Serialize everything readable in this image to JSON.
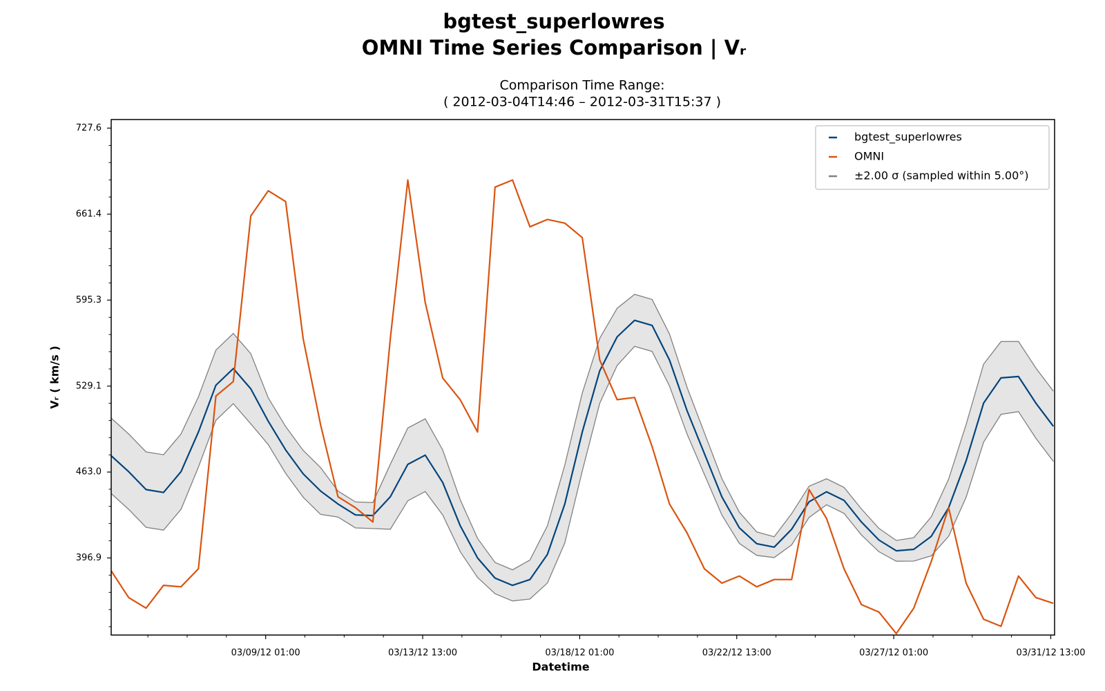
{
  "chart_data": {
    "type": "line",
    "title": "bgtest_superlowres",
    "subtitle": "OMNI Time Series Comparison | Vᵣ",
    "range_title": "Comparison Time Range:",
    "range_text": "( 2012-03-04T14:46 – 2012-03-31T15:37 )",
    "x_label": "Datetime",
    "y_label": "Vᵣ ( km/s )",
    "x": [
      "2012-03-04T14:46",
      "2012-03-05T02:46",
      "2012-03-05T14:46",
      "2012-03-06T02:46",
      "2012-03-06T14:46",
      "2012-03-07T02:46",
      "2012-03-07T14:46",
      "2012-03-08T02:46",
      "2012-03-08T14:46",
      "2012-03-09T02:46",
      "2012-03-09T14:46",
      "2012-03-10T02:46",
      "2012-03-10T14:46",
      "2012-03-11T02:46",
      "2012-03-11T14:46",
      "2012-03-12T02:46",
      "2012-03-12T14:46",
      "2012-03-13T02:46",
      "2012-03-13T14:46",
      "2012-03-14T02:46",
      "2012-03-14T14:46",
      "2012-03-15T02:46",
      "2012-03-15T14:46",
      "2012-03-16T02:46",
      "2012-03-16T14:46",
      "2012-03-17T02:46",
      "2012-03-17T14:46",
      "2012-03-18T02:46",
      "2012-03-18T14:46",
      "2012-03-19T02:46",
      "2012-03-19T14:46",
      "2012-03-20T02:46",
      "2012-03-20T14:46",
      "2012-03-21T02:46",
      "2012-03-21T14:46",
      "2012-03-22T02:46",
      "2012-03-22T14:46",
      "2012-03-23T02:46",
      "2012-03-23T14:46",
      "2012-03-24T02:46",
      "2012-03-24T14:46",
      "2012-03-25T02:46",
      "2012-03-25T14:46",
      "2012-03-26T02:46",
      "2012-03-26T14:46",
      "2012-03-27T02:46",
      "2012-03-27T14:46",
      "2012-03-28T02:46",
      "2012-03-28T14:46",
      "2012-03-29T02:46",
      "2012-03-29T14:46",
      "2012-03-30T02:46",
      "2012-03-30T14:46",
      "2012-03-31T02:46",
      "2012-03-31T14:46"
    ],
    "series": [
      {
        "name": "bgtest_superlowres",
        "color": "#00447c",
        "values": [
          475.5,
          463.3,
          449.5,
          447.3,
          463.3,
          493.8,
          529.8,
          542.6,
          527.1,
          502.1,
          480,
          461.7,
          448.4,
          438.4,
          430,
          429.5,
          444,
          468.9,
          476,
          455,
          421.8,
          396.9,
          381.4,
          375.8,
          380.3,
          399.6,
          438.4,
          493.8,
          540.9,
          567,
          579.7,
          575.8,
          549.2,
          510.4,
          477.2,
          444,
          420.1,
          407.9,
          405.2,
          419,
          440.1,
          447.8,
          441.2,
          424.6,
          410.7,
          402.4,
          403.5,
          413.5,
          435.6,
          471.6,
          516,
          535.4,
          536.5,
          516,
          498.2
        ]
      },
      {
        "name": "OMNI",
        "color": "#d9540f",
        "values": [
          387,
          366.4,
          358.3,
          375.8,
          374.7,
          388.6,
          521.5,
          532.6,
          660,
          679.4,
          671.1,
          565.8,
          499.4,
          444,
          435.6,
          424.6,
          565.8,
          687.7,
          593.5,
          535.4,
          518.7,
          493.8,
          682.2,
          687.7,
          651.7,
          657.3,
          654.5,
          643.4,
          549.2,
          518.7,
          520.4,
          482.7,
          438.4,
          416.3,
          388.6,
          377.5,
          383,
          374.7,
          380.3,
          380.3,
          449.5,
          427.3,
          388.6,
          361,
          355.3,
          338.7,
          358.3,
          394.1,
          435.6,
          377.5,
          349.8,
          344.3,
          383,
          366.4,
          362
        ]
      }
    ],
    "band": {
      "name": "±2.00 σ (sampled within 5.00°)",
      "color": "#808080",
      "fill": "#e5e5e5",
      "upper": [
        504.5,
        492.3,
        478.5,
        476.3,
        492.3,
        520.8,
        556.8,
        569.6,
        554.1,
        520.1,
        498,
        479.7,
        466.4,
        448.4,
        440,
        439.5,
        469,
        496.9,
        504,
        480,
        441.8,
        411.9,
        393.4,
        387.8,
        395.3,
        421.6,
        468.4,
        523.8,
        565.9,
        589,
        599.7,
        595.8,
        569.2,
        528.4,
        493.2,
        458,
        432.1,
        416.9,
        413.2,
        431,
        452.1,
        457.8,
        451.2,
        434.6,
        419.7,
        410.4,
        412.5,
        428.5,
        457.6,
        499.6,
        546,
        563.4,
        563.5,
        543,
        525.2
      ],
      "lower": [
        446.5,
        434.3,
        420.5,
        418.3,
        434.3,
        466.8,
        502.8,
        515.6,
        500.1,
        484.1,
        462,
        443.7,
        430.4,
        428.4,
        420,
        419.5,
        419,
        440.9,
        448,
        430,
        401.8,
        381.9,
        369.4,
        363.8,
        365.3,
        377.6,
        408.4,
        463.8,
        515.9,
        545,
        559.7,
        555.8,
        529.2,
        492.4,
        461.2,
        430,
        408.1,
        398.9,
        397.2,
        407,
        428.1,
        437.8,
        431.2,
        414.6,
        401.7,
        394.4,
        394.5,
        398.5,
        413.6,
        443.6,
        486,
        507.4,
        509.5,
        489,
        471.2
      ]
    },
    "xlim": [
      "2012-03-04T14:46",
      "2012-03-31T15:37"
    ],
    "xticks": [
      {
        "value": "2012-03-09T01:00",
        "label": "03/09/12 01:00"
      },
      {
        "value": "2012-03-13T13:00",
        "label": "03/13/12 13:00"
      },
      {
        "value": "2012-03-18T01:00",
        "label": "03/18/12 01:00"
      },
      {
        "value": "2012-03-22T13:00",
        "label": "03/22/12 13:00"
      },
      {
        "value": "2012-03-27T01:00",
        "label": "03/27/12 01:00"
      },
      {
        "value": "2012-03-31T13:00",
        "label": "03/31/12 13:00"
      }
    ],
    "xminorticks": [
      "2012-03-05T16:00",
      "2012-03-06T19:00",
      "2012-03-07T22:00",
      "2012-03-10T04:00",
      "2012-03-11T07:00",
      "2012-03-12T10:00",
      "2012-03-14T16:00",
      "2012-03-15T19:00",
      "2012-03-16T22:00",
      "2012-03-19T04:00",
      "2012-03-20T07:00",
      "2012-03-21T10:00",
      "2012-03-23T16:00",
      "2012-03-24T19:00",
      "2012-03-25T22:00",
      "2012-03-28T04:00",
      "2012-03-29T07:00",
      "2012-03-30T10:00"
    ],
    "ylim": [
      337.6,
      734.2
    ],
    "yticks": [
      396.9,
      {
        "value": 463.0,
        "label": "463.0"
      },
      529.1,
      595.3,
      661.4,
      727.6
    ],
    "yminorticks": [
      344.0,
      357.2,
      370.4,
      383.7,
      410.1,
      423.4,
      436.6,
      449.8,
      476.2,
      489.5,
      502.7,
      515.9,
      542.3,
      555.6,
      568.8,
      582.0,
      608.5,
      621.7,
      634.9,
      648.2,
      674.6,
      687.8,
      701.1,
      714.3
    ],
    "legend": "upper right"
  }
}
